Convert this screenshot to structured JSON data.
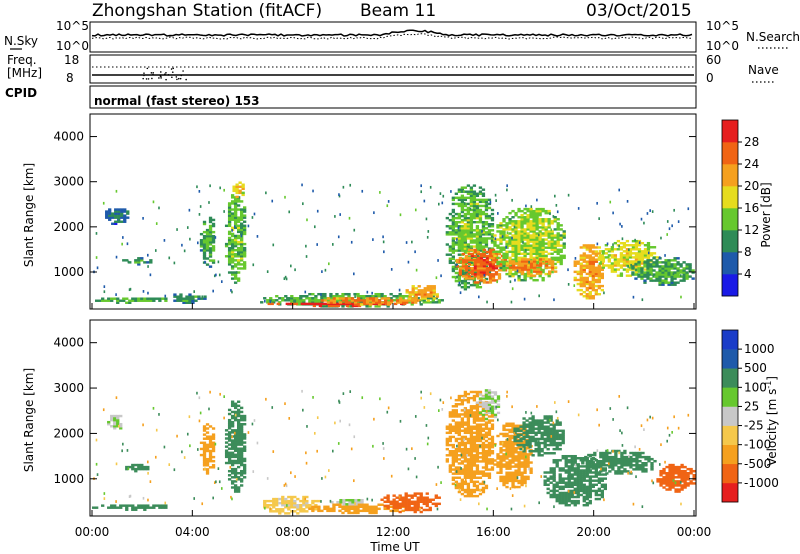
{
  "header": {
    "station": "Zhongshan Station (fitACF)",
    "beam": "Beam 11",
    "date": "03/Oct/2015"
  },
  "nsky": {
    "label": "N.Sky",
    "ticks": [
      "10^5",
      "10^0"
    ],
    "right_label": "N.Search",
    "right_ticks": [
      "10^5",
      "10^0"
    ]
  },
  "freq": {
    "label_lines": [
      "Freq.",
      "[MHz]"
    ],
    "ticks": [
      "18",
      "8"
    ],
    "right_label": "Nave",
    "right_ticks": [
      "60",
      "0"
    ]
  },
  "cpid": {
    "label": "CPID",
    "text": "normal (fast stereo) 153"
  },
  "x_axis": {
    "label": "Time UT",
    "ticks": [
      "00:00",
      "04:00",
      "08:00",
      "12:00",
      "16:00",
      "20:00",
      "00:00"
    ]
  },
  "range_axis": {
    "label": "Slant Range [km]",
    "ticks": [
      "1000",
      "2000",
      "3000",
      "4000"
    ]
  },
  "power_scale": {
    "label": "Power [dB]",
    "ticks": [
      "4",
      "8",
      "12",
      "16",
      "20",
      "24",
      "28"
    ],
    "colors": [
      "#1a1ae6",
      "#1e5aaa",
      "#2e8b57",
      "#66c82e",
      "#e6dc1e",
      "#f5a01e",
      "#f06414",
      "#e61e1e"
    ]
  },
  "velocity_scale": {
    "label": "Velocity [m s-1]",
    "label_main": "Velocity",
    "unit_pre": "[m s",
    "unit_sup": "-1",
    "unit_post": "]",
    "ticks": [
      "-1000",
      "-500",
      "-100",
      "-25",
      "25",
      "100",
      "500",
      "1000"
    ],
    "colors": [
      "#e61e1e",
      "#f06414",
      "#f5a01e",
      "#f5c84b",
      "#c8c8c8",
      "#66c82e",
      "#3c8c5a",
      "#1e5aaa",
      "#1a3cc8"
    ]
  },
  "chart_data": [
    {
      "type": "heatmap",
      "title": "Power [dB]",
      "xlabel": "Time UT",
      "ylabel": "Slant Range [km]",
      "xlim": [
        "00:00",
        "00:00"
      ],
      "ylim": [
        180,
        4500
      ],
      "colorbar_ticks": [
        4,
        8,
        12,
        16,
        20,
        24,
        28
      ],
      "blobs": [
        {
          "t0": 0.0,
          "t1": 3.0,
          "r0": 300,
          "r1": 420,
          "v": 10
        },
        {
          "t0": 0.4,
          "t1": 1.4,
          "r0": 2050,
          "r1": 2400,
          "v": 6
        },
        {
          "t0": 1.2,
          "t1": 2.4,
          "r0": 1150,
          "r1": 1300,
          "v": 8
        },
        {
          "t0": 3.0,
          "t1": 4.5,
          "r0": 300,
          "r1": 500,
          "v": 8
        },
        {
          "t0": 4.3,
          "t1": 4.9,
          "r0": 1100,
          "r1": 2200,
          "v": 10
        },
        {
          "t0": 5.3,
          "t1": 6.1,
          "r0": 700,
          "r1": 2700,
          "v": 12
        },
        {
          "t0": 5.6,
          "t1": 6.0,
          "r0": 2600,
          "r1": 3000,
          "v": 18
        },
        {
          "t0": 6.7,
          "t1": 14.0,
          "r0": 220,
          "r1": 500,
          "v": 11
        },
        {
          "t0": 7.0,
          "t1": 12.4,
          "r0": 230,
          "r1": 320,
          "v": 26
        },
        {
          "t0": 9.0,
          "t1": 13.0,
          "r0": 260,
          "r1": 420,
          "v": 22
        },
        {
          "t0": 12.5,
          "t1": 13.8,
          "r0": 350,
          "r1": 700,
          "v": 20
        },
        {
          "t0": 14.1,
          "t1": 16.0,
          "r0": 600,
          "r1": 2900,
          "v": 12
        },
        {
          "t0": 14.5,
          "t1": 16.5,
          "r0": 750,
          "r1": 1500,
          "v": 24
        },
        {
          "t0": 16.0,
          "t1": 18.8,
          "r0": 800,
          "r1": 2400,
          "v": 14
        },
        {
          "t0": 16.5,
          "t1": 18.5,
          "r0": 900,
          "r1": 1300,
          "v": 22
        },
        {
          "t0": 19.2,
          "t1": 20.4,
          "r0": 400,
          "r1": 1600,
          "v": 20
        },
        {
          "t0": 20.2,
          "t1": 22.5,
          "r0": 900,
          "r1": 1700,
          "v": 16
        },
        {
          "t0": 21.5,
          "t1": 24.0,
          "r0": 700,
          "r1": 1300,
          "v": 10
        }
      ]
    },
    {
      "type": "heatmap",
      "title": "Velocity [m s-1]",
      "xlabel": "Time UT",
      "ylabel": "Slant Range [km]",
      "xlim": [
        "00:00",
        "00:00"
      ],
      "ylim": [
        180,
        4500
      ],
      "colorbar_ticks": [
        -1000,
        -500,
        -100,
        -25,
        25,
        100,
        500,
        1000
      ],
      "blobs": [
        {
          "t0": 0.0,
          "t1": 3.0,
          "r0": 300,
          "r1": 420,
          "v": 200
        },
        {
          "t0": 0.6,
          "t1": 1.2,
          "r0": 2050,
          "r1": 2400,
          "v": 10
        },
        {
          "t0": 1.2,
          "t1": 2.4,
          "r0": 1150,
          "r1": 1300,
          "v": 150
        },
        {
          "t0": 4.3,
          "t1": 4.9,
          "r0": 1100,
          "r1": 2200,
          "v": -200
        },
        {
          "t0": 5.3,
          "t1": 6.1,
          "r0": 700,
          "r1": 2700,
          "v": 300
        },
        {
          "t0": 6.7,
          "t1": 9.0,
          "r0": 220,
          "r1": 600,
          "v": -60
        },
        {
          "t0": 8.5,
          "t1": 12.5,
          "r0": 230,
          "r1": 420,
          "v": -150
        },
        {
          "t0": 9.5,
          "t1": 11.0,
          "r0": 420,
          "r1": 520,
          "v": 5
        },
        {
          "t0": 11.5,
          "t1": 13.8,
          "r0": 250,
          "r1": 700,
          "v": -700
        },
        {
          "t0": 14.1,
          "t1": 16.0,
          "r0": 600,
          "r1": 2900,
          "v": -300
        },
        {
          "t0": 15.3,
          "t1": 16.2,
          "r0": 2300,
          "r1": 3000,
          "v": 10
        },
        {
          "t0": 16.0,
          "t1": 17.5,
          "r0": 800,
          "r1": 2200,
          "v": -250
        },
        {
          "t0": 16.8,
          "t1": 18.8,
          "r0": 1500,
          "r1": 2400,
          "v": 200
        },
        {
          "t0": 18.0,
          "t1": 20.5,
          "r0": 400,
          "r1": 1500,
          "v": 300
        },
        {
          "t0": 19.5,
          "t1": 22.5,
          "r0": 1100,
          "r1": 1600,
          "v": 400
        },
        {
          "t0": 22.5,
          "t1": 24.0,
          "r0": 700,
          "r1": 1300,
          "v": -800
        }
      ]
    }
  ]
}
